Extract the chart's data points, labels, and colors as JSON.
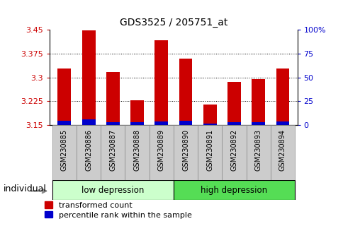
{
  "title": "GDS3525 / 205751_at",
  "samples": [
    "GSM230885",
    "GSM230886",
    "GSM230887",
    "GSM230888",
    "GSM230889",
    "GSM230890",
    "GSM230891",
    "GSM230892",
    "GSM230893",
    "GSM230894"
  ],
  "red_values": [
    3.328,
    3.448,
    3.317,
    3.228,
    3.418,
    3.36,
    3.215,
    3.285,
    3.296,
    3.328
  ],
  "blue_values": [
    3.163,
    3.168,
    3.158,
    3.158,
    3.162,
    3.163,
    3.155,
    3.16,
    3.16,
    3.162
  ],
  "base": 3.15,
  "ylim_min": 3.15,
  "ylim_max": 3.45,
  "yticks": [
    3.15,
    3.225,
    3.3,
    3.375,
    3.45
  ],
  "right_yticks": [
    0,
    25,
    50,
    75,
    100
  ],
  "right_ylabels": [
    "0",
    "25",
    "50",
    "75",
    "100%"
  ],
  "bar_color_red": "#cc0000",
  "bar_color_blue": "#0000cc",
  "group1_label": "low depression",
  "group2_label": "high depression",
  "group1_indices": [
    0,
    1,
    2,
    3,
    4
  ],
  "group2_indices": [
    5,
    6,
    7,
    8,
    9
  ],
  "group1_bg": "#ccffcc",
  "group2_bg": "#55dd55",
  "xlabel": "individual",
  "legend_red": "transformed count",
  "legend_blue": "percentile rank within the sample",
  "tick_label_color_left": "#cc0000",
  "tick_label_color_right": "#0000cc",
  "bar_width": 0.55,
  "grid_lines": [
    3.225,
    3.3,
    3.375
  ],
  "sample_box_color": "#cccccc",
  "sample_box_edge": "#888888"
}
